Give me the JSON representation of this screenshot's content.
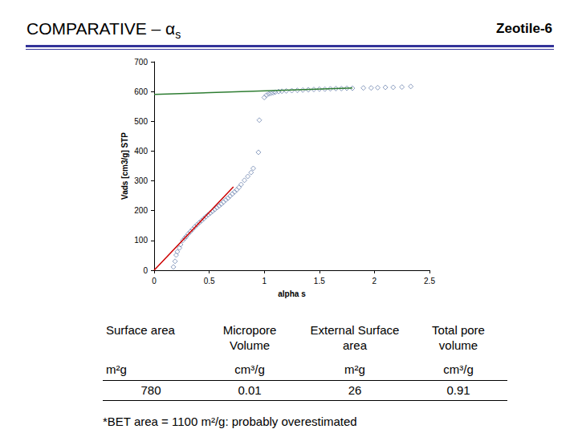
{
  "header": {
    "title": {
      "text": "COMPARATIVE – α",
      "subscript": "s"
    },
    "corner": "Zeotile-6"
  },
  "chart_data": {
    "type": "scatter",
    "x_label": "alpha s",
    "y_label": "Vads [cm3/g] STP",
    "xlim": [
      0,
      2.5
    ],
    "xticks": [
      0,
      0.5,
      1,
      1.5,
      2,
      2.5
    ],
    "ylim": [
      0,
      700
    ],
    "yticks": [
      0,
      100,
      200,
      300,
      400,
      500,
      600,
      700
    ],
    "grid": false,
    "series": [
      {
        "type": "scatter",
        "color": "#6f86b0",
        "marker": "diamond",
        "x": [
          0.175,
          0.19,
          0.2,
          0.21,
          0.23,
          0.24,
          0.26,
          0.28,
          0.29,
          0.31,
          0.33,
          0.35,
          0.37,
          0.39,
          0.41,
          0.43,
          0.45,
          0.47,
          0.49,
          0.51,
          0.53,
          0.55,
          0.57,
          0.59,
          0.61,
          0.63,
          0.65,
          0.67,
          0.69,
          0.71,
          0.73,
          0.75,
          0.77,
          0.79,
          0.82,
          0.85,
          0.88,
          0.9,
          0.947,
          0.955,
          1.0,
          1.02,
          1.04,
          1.06,
          1.08,
          1.1,
          1.13,
          1.16,
          1.2,
          1.25,
          1.3,
          1.35,
          1.4,
          1.45,
          1.5,
          1.55,
          1.6,
          1.65,
          1.7,
          1.75,
          1.8,
          1.9,
          1.97,
          2.03,
          2.1,
          2.17,
          2.25,
          2.33
        ],
        "values": [
          11,
          30,
          51,
          62,
          75,
          86,
          100,
          108,
          113,
          122,
          130,
          138,
          146,
          153,
          160,
          166,
          173,
          180,
          186,
          192,
          198,
          204,
          210,
          216,
          222,
          229,
          236,
          242,
          249,
          256,
          263,
          270,
          278,
          288,
          302,
          315,
          328,
          342,
          396,
          504,
          580,
          588,
          592,
          594,
          596,
          598,
          600,
          601,
          602,
          603,
          604,
          605,
          606,
          607,
          608,
          608,
          609,
          610,
          610,
          611,
          611,
          612,
          612,
          613,
          614,
          614,
          615,
          617
        ]
      },
      {
        "type": "line",
        "color": "#cc0000",
        "x": [
          0,
          0.72
        ],
        "values": [
          0,
          280
        ]
      },
      {
        "type": "line",
        "color": "#2e7d32",
        "x": [
          0,
          1.8
        ],
        "values": [
          590,
          612
        ]
      }
    ]
  },
  "table": {
    "columns": [
      {
        "header": "Surface area",
        "unit": "m²g"
      },
      {
        "header": "Micropore Volume",
        "unit": "cm³/g"
      },
      {
        "header": "External Surface area",
        "unit": "m²g"
      },
      {
        "header": "Total pore volume",
        "unit": "cm³/g"
      }
    ],
    "rows": [
      [
        780,
        0.01,
        26,
        0.91
      ]
    ]
  },
  "footnote": "*BET area = 1100 m²/g: probably overestimated"
}
